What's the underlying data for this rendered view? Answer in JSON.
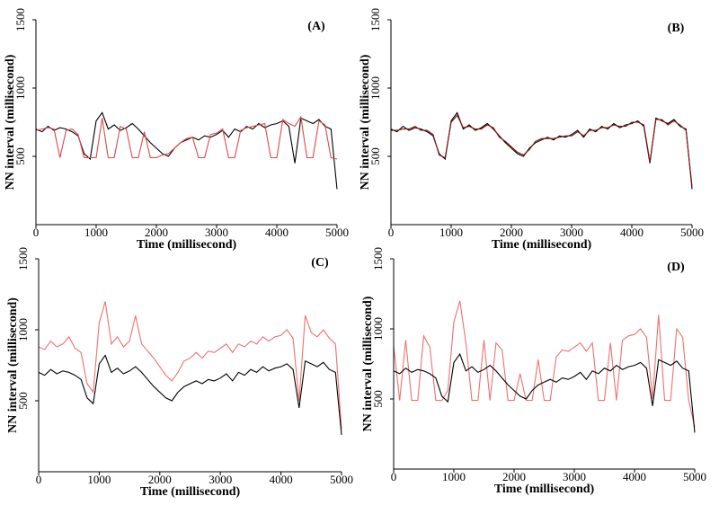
{
  "chart_data": [
    {
      "type": "line",
      "title": "(A)",
      "xlabel": "Time (millisecond)",
      "ylabel": "NN interval (millisecond)",
      "x": [
        0,
        100,
        200,
        300,
        400,
        500,
        600,
        700,
        800,
        900,
        1000,
        1100,
        1200,
        1300,
        1400,
        1500,
        1600,
        1700,
        1800,
        1900,
        2000,
        2100,
        2200,
        2300,
        2400,
        2500,
        2600,
        2700,
        2800,
        2900,
        3000,
        3100,
        3200,
        3300,
        3400,
        3500,
        3600,
        3700,
        3800,
        3900,
        4000,
        4100,
        4200,
        4300,
        4400,
        4500,
        4600,
        4700,
        4800,
        4900,
        5000
      ],
      "xlim": [
        0,
        5000
      ],
      "xticks": [
        0,
        1000,
        2000,
        3000,
        4000,
        5000
      ],
      "ylim": [
        0,
        1500
      ],
      "yticks": [
        500,
        1000,
        1500
      ],
      "series": [
        {
          "color": "#000000",
          "values": [
            700,
            680,
            720,
            690,
            710,
            700,
            680,
            650,
            520,
            480,
            760,
            820,
            700,
            730,
            690,
            710,
            740,
            700,
            650,
            600,
            560,
            520,
            500,
            560,
            600,
            620,
            640,
            620,
            650,
            640,
            660,
            690,
            640,
            700,
            680,
            720,
            700,
            740,
            710,
            730,
            740,
            760,
            720,
            450,
            780,
            760,
            740,
            770,
            720,
            700,
            260
          ]
        },
        {
          "color": "#e04848",
          "values": [
            690,
            700,
            710,
            700,
            490,
            690,
            700,
            660,
            490,
            490,
            490,
            780,
            490,
            490,
            720,
            700,
            490,
            490,
            680,
            490,
            490,
            510,
            520,
            560,
            600,
            630,
            640,
            490,
            490,
            660,
            670,
            700,
            490,
            490,
            690,
            710,
            720,
            730,
            740,
            490,
            490,
            770,
            740,
            720,
            790,
            490,
            490,
            760,
            730,
            490,
            480
          ]
        }
      ]
    },
    {
      "type": "line",
      "title": "(B)",
      "xlabel": "Time (millisecond)",
      "ylabel": "NN interval (millisecond)",
      "x": [
        0,
        100,
        200,
        300,
        400,
        500,
        600,
        700,
        800,
        900,
        1000,
        1100,
        1200,
        1300,
        1400,
        1500,
        1600,
        1700,
        1800,
        1900,
        2000,
        2100,
        2200,
        2300,
        2400,
        2500,
        2600,
        2700,
        2800,
        2900,
        3000,
        3100,
        3200,
        3300,
        3400,
        3500,
        3600,
        3700,
        3800,
        3900,
        4000,
        4100,
        4200,
        4300,
        4400,
        4500,
        4600,
        4700,
        4800,
        4900,
        5000
      ],
      "xlim": [
        0,
        5000
      ],
      "xticks": [
        0,
        1000,
        2000,
        3000,
        4000,
        5000
      ],
      "ylim": [
        0,
        1500
      ],
      "yticks": [
        500,
        1000,
        1500
      ],
      "series": [
        {
          "color": "#000000",
          "values": [
            700,
            680,
            720,
            690,
            710,
            700,
            680,
            650,
            520,
            480,
            760,
            820,
            700,
            730,
            690,
            710,
            740,
            700,
            650,
            600,
            560,
            520,
            500,
            560,
            600,
            620,
            640,
            620,
            650,
            640,
            660,
            690,
            640,
            700,
            680,
            720,
            700,
            740,
            710,
            730,
            740,
            760,
            720,
            450,
            780,
            760,
            740,
            770,
            720,
            700,
            260
          ]
        },
        {
          "color": "#8b1010",
          "values": [
            690,
            690,
            700,
            700,
            720,
            690,
            690,
            660,
            510,
            490,
            750,
            800,
            710,
            720,
            700,
            700,
            730,
            710,
            640,
            610,
            570,
            530,
            510,
            550,
            610,
            630,
            630,
            630,
            640,
            650,
            650,
            680,
            650,
            690,
            690,
            710,
            710,
            730,
            720,
            720,
            750,
            750,
            730,
            460,
            770,
            770,
            730,
            760,
            730,
            690,
            280
          ]
        }
      ]
    },
    {
      "type": "line",
      "title": "(C)",
      "xlabel": "Time (millisecond)",
      "ylabel": "NN interval (millisecond)",
      "x": [
        0,
        100,
        200,
        300,
        400,
        500,
        600,
        700,
        800,
        900,
        1000,
        1100,
        1200,
        1300,
        1400,
        1500,
        1600,
        1700,
        1800,
        1900,
        2000,
        2100,
        2200,
        2300,
        2400,
        2500,
        2600,
        2700,
        2800,
        2900,
        3000,
        3100,
        3200,
        3300,
        3400,
        3500,
        3600,
        3700,
        3800,
        3900,
        4000,
        4100,
        4200,
        4300,
        4400,
        4500,
        4600,
        4700,
        4800,
        4900,
        5000
      ],
      "xlim": [
        0,
        5000
      ],
      "xticks": [
        0,
        1000,
        2000,
        3000,
        4000,
        5000
      ],
      "ylim": [
        0,
        1500
      ],
      "yticks": [
        500,
        1000,
        1500
      ],
      "series": [
        {
          "color": "#f07070",
          "values": [
            880,
            860,
            920,
            880,
            900,
            950,
            870,
            840,
            620,
            560,
            1050,
            1200,
            900,
            950,
            880,
            920,
            1100,
            900,
            850,
            800,
            740,
            680,
            640,
            700,
            780,
            800,
            840,
            800,
            850,
            840,
            870,
            900,
            840,
            900,
            880,
            920,
            900,
            950,
            920,
            950,
            960,
            1000,
            940,
            500,
            1100,
            980,
            950,
            1000,
            940,
            900,
            300
          ]
        },
        {
          "color": "#000000",
          "values": [
            700,
            680,
            720,
            690,
            710,
            700,
            680,
            650,
            520,
            480,
            760,
            820,
            700,
            730,
            690,
            710,
            740,
            700,
            650,
            600,
            560,
            520,
            500,
            560,
            600,
            620,
            640,
            620,
            650,
            640,
            660,
            690,
            640,
            700,
            680,
            720,
            700,
            740,
            710,
            730,
            740,
            760,
            720,
            450,
            780,
            760,
            740,
            770,
            720,
            700,
            260
          ]
        }
      ]
    },
    {
      "type": "line",
      "title": "(D)",
      "xlabel": "Time (millisecond)",
      "ylabel": "NN interval (millisecond)",
      "x": [
        0,
        100,
        200,
        300,
        400,
        500,
        600,
        700,
        800,
        900,
        1000,
        1100,
        1200,
        1300,
        1400,
        1500,
        1600,
        1700,
        1800,
        1900,
        2000,
        2100,
        2200,
        2300,
        2400,
        2500,
        2600,
        2700,
        2800,
        2900,
        3000,
        3100,
        3200,
        3300,
        3400,
        3500,
        3600,
        3700,
        3800,
        3900,
        4000,
        4100,
        4200,
        4300,
        4400,
        4500,
        4600,
        4700,
        4800,
        4900,
        5000
      ],
      "xlim": [
        0,
        5000
      ],
      "xticks": [
        0,
        1000,
        2000,
        3000,
        4000,
        5000
      ],
      "ylim": [
        0,
        1500
      ],
      "yticks": [
        500,
        1000,
        1500
      ],
      "series": [
        {
          "color": "#f07070",
          "values": [
            880,
            490,
            920,
            490,
            490,
            950,
            870,
            490,
            490,
            560,
            1050,
            1200,
            900,
            490,
            490,
            920,
            490,
            900,
            850,
            490,
            490,
            680,
            490,
            490,
            780,
            490,
            490,
            800,
            850,
            840,
            870,
            900,
            840,
            900,
            490,
            490,
            900,
            490,
            920,
            950,
            960,
            1000,
            940,
            500,
            1100,
            490,
            490,
            1000,
            940,
            490,
            300
          ]
        },
        {
          "color": "#000000",
          "values": [
            700,
            680,
            720,
            690,
            710,
            700,
            680,
            650,
            520,
            480,
            760,
            820,
            700,
            730,
            690,
            710,
            740,
            700,
            650,
            600,
            560,
            520,
            500,
            560,
            600,
            620,
            640,
            620,
            650,
            640,
            660,
            690,
            640,
            700,
            680,
            720,
            700,
            740,
            710,
            730,
            740,
            760,
            720,
            450,
            780,
            760,
            740,
            770,
            720,
            700,
            260
          ]
        }
      ]
    }
  ]
}
